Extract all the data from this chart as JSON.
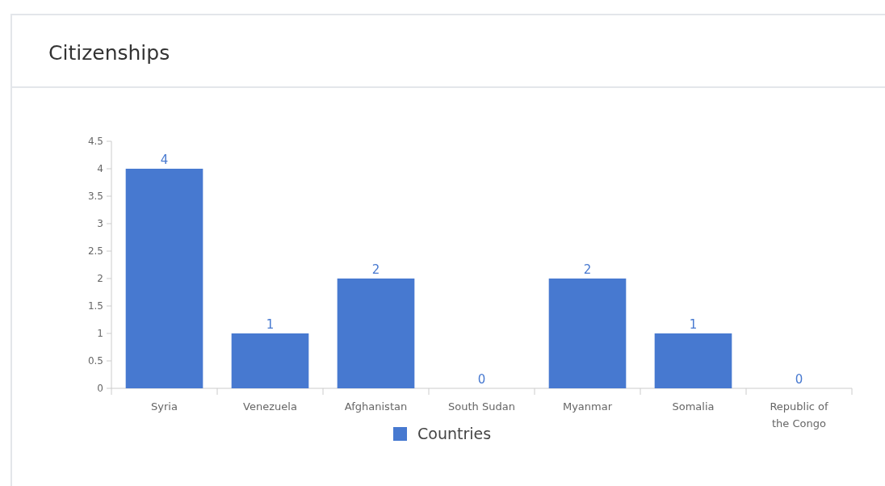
{
  "chart_data": {
    "type": "bar",
    "title": "Citizenships",
    "categories": [
      "Syria",
      "Venezuela",
      "Afghanistan",
      "South Sudan",
      "Myanmar",
      "Somalia",
      "Republic of the Congo"
    ],
    "series": [
      {
        "name": "Countries",
        "color": "#4779d0",
        "values": [
          4,
          1,
          2,
          0,
          2,
          1,
          0
        ]
      }
    ],
    "ylim": [
      0,
      4.5
    ],
    "yticks": [
      0,
      0.5,
      1,
      1.5,
      2,
      2.5,
      3,
      3.5,
      4,
      4.5
    ],
    "data_labels": true,
    "legend": "bottom",
    "grid": false
  }
}
